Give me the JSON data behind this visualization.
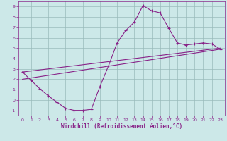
{
  "xlabel": "Windchill (Refroidissement éolien,°C)",
  "bg_color": "#cce8e8",
  "line_color": "#882288",
  "grid_color": "#99bbbb",
  "xlim": [
    -0.5,
    23.5
  ],
  "ylim": [
    -1.5,
    9.5
  ],
  "xticks": [
    0,
    1,
    2,
    3,
    4,
    5,
    6,
    7,
    8,
    9,
    10,
    11,
    12,
    13,
    14,
    15,
    16,
    17,
    18,
    19,
    20,
    21,
    22,
    23
  ],
  "yticks": [
    -1,
    0,
    1,
    2,
    3,
    4,
    5,
    6,
    7,
    8,
    9
  ],
  "main_x": [
    0,
    1,
    2,
    3,
    4,
    5,
    6,
    7,
    8,
    9,
    10,
    11,
    12,
    13,
    14,
    15,
    16,
    17,
    18,
    19,
    20,
    21,
    22,
    23
  ],
  "main_y": [
    2.7,
    1.9,
    1.1,
    0.4,
    -0.2,
    -0.8,
    -1.0,
    -1.0,
    -0.9,
    1.3,
    3.3,
    5.5,
    6.7,
    7.5,
    9.1,
    8.6,
    8.4,
    6.9,
    5.5,
    5.3,
    5.4,
    5.5,
    5.4,
    4.9
  ],
  "upper_line_x": [
    0,
    23
  ],
  "upper_line_y": [
    2.7,
    5.0
  ],
  "lower_line_x": [
    0,
    23
  ],
  "lower_line_y": [
    2.0,
    4.9
  ],
  "marker_size": 3.5,
  "linewidth": 0.8,
  "tick_fontsize": 4.5,
  "xlabel_fontsize": 5.5
}
